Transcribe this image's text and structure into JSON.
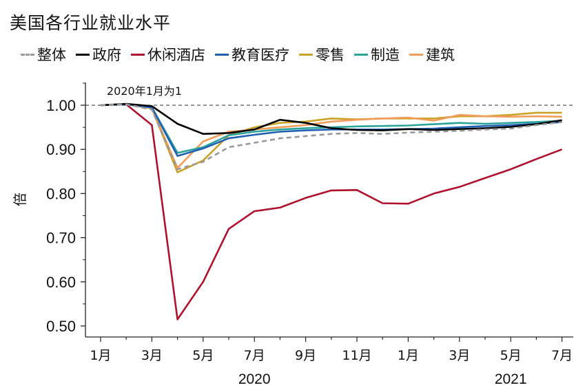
{
  "chart_data": {
    "type": "line",
    "title": "美国各行业就业水平",
    "ylabel": "倍",
    "ylim": [
      0.5,
      1.05
    ],
    "yticks": [
      "0.50",
      "0.60",
      "0.70",
      "0.80",
      "0.90",
      "1.00"
    ],
    "yticks_values": [
      0.5,
      0.6,
      0.7,
      0.8,
      0.9,
      1.0
    ],
    "x_labels": [
      "1月",
      "3月",
      "5月",
      "7月",
      "9月",
      "11月",
      "1月",
      "3月",
      "5月",
      "7月"
    ],
    "x_label_index": [
      0,
      2,
      4,
      6,
      8,
      10,
      12,
      14,
      16,
      18
    ],
    "years": [
      {
        "label": "2020",
        "index": 6
      },
      {
        "label": "2021",
        "index": 16
      }
    ],
    "annotation": "2020年1月为1",
    "reference_line": 1.0,
    "x": [
      "2020-01",
      "2020-02",
      "2020-03",
      "2020-04",
      "2020-05",
      "2020-06",
      "2020-07",
      "2020-08",
      "2020-09",
      "2020-10",
      "2020-11",
      "2020-12",
      "2021-01",
      "2021-02",
      "2021-03",
      "2021-04",
      "2021-05",
      "2021-06",
      "2021-07"
    ],
    "series": [
      {
        "name": "整体",
        "color": "#999999",
        "dash": true,
        "values": [
          1.0,
          1.002,
          0.99,
          0.855,
          0.872,
          0.905,
          0.915,
          0.925,
          0.93,
          0.935,
          0.937,
          0.935,
          0.938,
          0.94,
          0.942,
          0.945,
          0.947,
          0.955,
          0.962
        ]
      },
      {
        "name": "政府",
        "color": "#000000",
        "dash": false,
        "values": [
          1.0,
          1.003,
          0.998,
          0.958,
          0.935,
          0.937,
          0.945,
          0.967,
          0.96,
          0.948,
          0.944,
          0.943,
          0.946,
          0.944,
          0.946,
          0.948,
          0.951,
          0.957,
          0.966
        ]
      },
      {
        "name": "休闲酒店",
        "color": "#b0102c",
        "dash": false,
        "values": [
          1.0,
          1.002,
          0.955,
          0.515,
          0.6,
          0.72,
          0.76,
          0.768,
          0.79,
          0.807,
          0.808,
          0.778,
          0.777,
          0.8,
          0.815,
          0.835,
          0.855,
          0.878,
          0.9
        ]
      },
      {
        "name": "教育医疗",
        "color": "#1f5fb4",
        "dash": false,
        "values": [
          1.0,
          1.002,
          0.995,
          0.885,
          0.902,
          0.925,
          0.933,
          0.94,
          0.943,
          0.945,
          0.945,
          0.945,
          0.946,
          0.947,
          0.95,
          0.953,
          0.955,
          0.958,
          0.962
        ]
      },
      {
        "name": "零售",
        "color": "#c9a227",
        "dash": false,
        "values": [
          1.0,
          1.002,
          0.993,
          0.848,
          0.875,
          0.932,
          0.95,
          0.96,
          0.963,
          0.97,
          0.968,
          0.97,
          0.97,
          0.97,
          0.975,
          0.975,
          0.978,
          0.983,
          0.983
        ]
      },
      {
        "name": "制造",
        "color": "#2aa39a",
        "dash": false,
        "values": [
          1.0,
          1.002,
          0.995,
          0.892,
          0.905,
          0.932,
          0.94,
          0.945,
          0.948,
          0.95,
          0.952,
          0.953,
          0.954,
          0.957,
          0.96,
          0.958,
          0.96,
          0.962,
          0.965
        ]
      },
      {
        "name": "建筑",
        "color": "#f29c5a",
        "dash": false,
        "values": [
          1.0,
          1.002,
          0.994,
          0.858,
          0.918,
          0.94,
          0.945,
          0.95,
          0.955,
          0.963,
          0.967,
          0.97,
          0.972,
          0.965,
          0.978,
          0.975,
          0.974,
          0.975,
          0.974
        ]
      }
    ]
  }
}
